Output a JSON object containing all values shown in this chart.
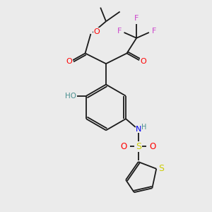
{
  "background_color": "#ebebeb",
  "bond_color": "#1a1a1a",
  "atom_colors": {
    "O": "#ff0000",
    "N": "#0000ee",
    "F": "#cc44cc",
    "S": "#cccc00",
    "H": "#4a9090",
    "C": "#1a1a1a"
  },
  "fig_w": 3.0,
  "fig_h": 3.0,
  "dpi": 100
}
